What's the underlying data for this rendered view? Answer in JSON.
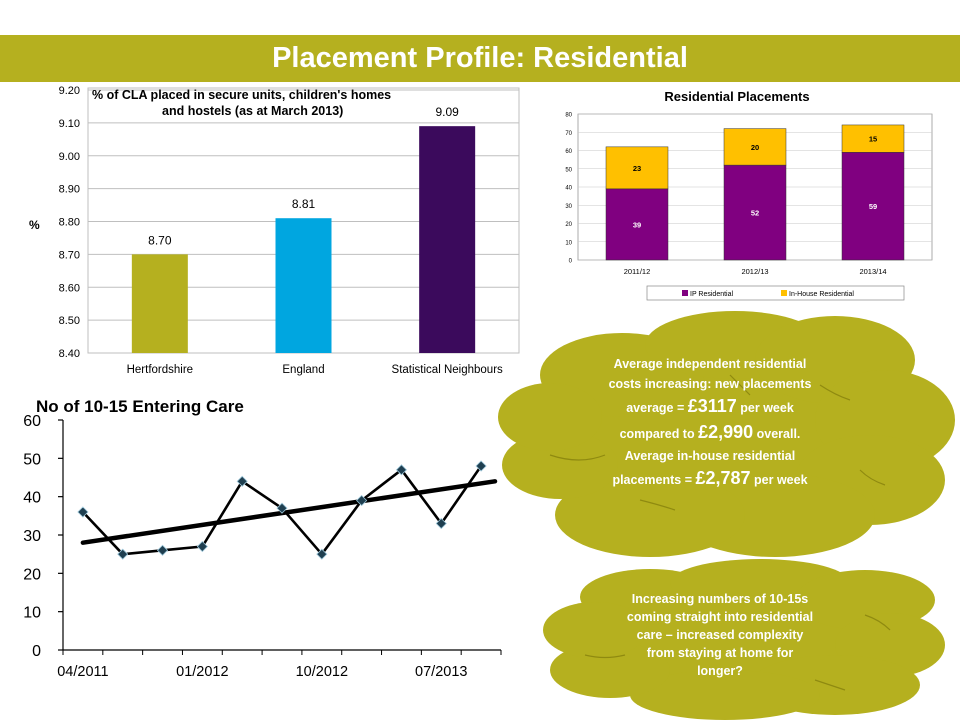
{
  "slide": {
    "title": "Placement Profile: Residential",
    "colors": {
      "banner": "#b5b01f",
      "cloud": "#b5b01f",
      "cloud_text": "#ffffff"
    }
  },
  "clouds": {
    "costs": {
      "line1": "Average independent residential",
      "line2": "costs increasing: new placements",
      "l3a": "average = ",
      "l3b": "£3117",
      "l3c": " per week",
      "l4a": "compared to ",
      "l4b": "£2,990",
      "l4c": " overall.",
      "line5": "Average in-house  residential",
      "l6a": "placements  = ",
      "l6b": "£2,787",
      "l6c": "  per week"
    },
    "complexity": {
      "line1": "Increasing numbers of 10-15s",
      "line2": "coming straight into residential",
      "line3": "care – increased complexity",
      "line4": "from staying at home for",
      "line5": "longer?"
    }
  },
  "chart_data": [
    {
      "type": "bar",
      "title_lines": [
        "% of CLA placed in secure units, children's homes",
        "and hostels (as at March 2013)"
      ],
      "ylabel": "%",
      "categories": [
        "Hertfordshire",
        "England",
        "Statistical Neighbours"
      ],
      "values": [
        8.7,
        8.81,
        9.09
      ],
      "value_labels": [
        "8.70",
        "8.81",
        "9.09"
      ],
      "colors": [
        "#b5b01f",
        "#00a6e0",
        "#3b0a5c"
      ],
      "ylim": [
        8.4,
        9.2
      ],
      "yticks": [
        "8.40",
        "8.50",
        "8.60",
        "8.70",
        "8.80",
        "8.90",
        "9.00",
        "9.10",
        "9.20"
      ],
      "grid": true
    },
    {
      "type": "bar",
      "stacked": true,
      "title": "Residential Placements",
      "categories": [
        "2011/12",
        "2012/13",
        "2013/14"
      ],
      "series": [
        {
          "name": "IP Residential",
          "values": [
            39,
            52,
            59
          ],
          "color": "#800080"
        },
        {
          "name": "In-House Residential",
          "values": [
            23,
            20,
            15
          ],
          "color": "#ffc000"
        }
      ],
      "ylim": [
        0,
        80
      ],
      "yticks": [
        "0",
        "10",
        "20",
        "30",
        "40",
        "50",
        "60",
        "70",
        "80"
      ],
      "grid": true,
      "legend": "bottom"
    },
    {
      "type": "line",
      "title": "No of 10-15 Entering Care",
      "x": [
        "04/2011",
        "07/2011",
        "10/2011",
        "01/2012",
        "04/2012",
        "07/2012",
        "10/2012",
        "01/2013",
        "04/2013",
        "07/2013",
        "10/2013"
      ],
      "values": [
        36,
        25,
        26,
        27,
        44,
        37,
        25,
        39,
        47,
        33,
        48
      ],
      "trendline": {
        "start": 28,
        "end": 44
      },
      "xticks": [
        "04/2011",
        "01/2012",
        "10/2012",
        "07/2013"
      ],
      "ylim": [
        0,
        60
      ],
      "yticks": [
        "0",
        "10",
        "20",
        "30",
        "40",
        "50",
        "60"
      ],
      "grid": false
    }
  ]
}
